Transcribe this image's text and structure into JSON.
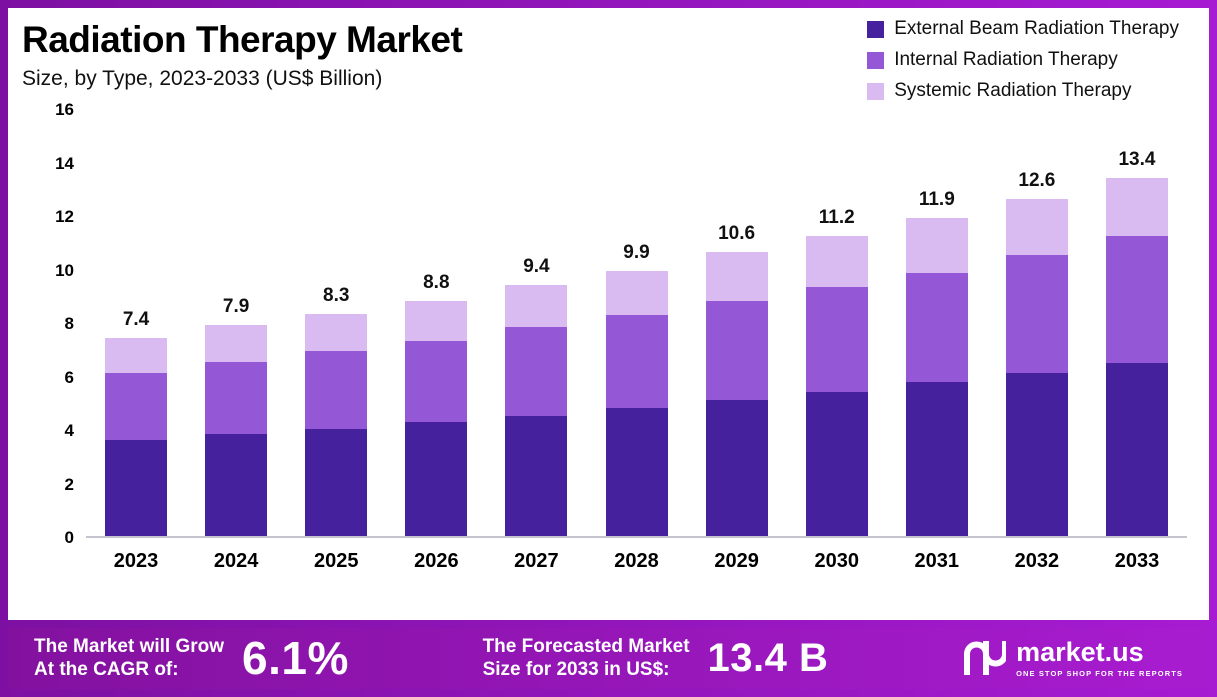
{
  "header": {
    "title": "Radiation Therapy Market",
    "subtitle": "Size, by Type, 2023-2033 (US$ Billion)"
  },
  "colors": {
    "external": "#45219E",
    "internal": "#9457D6",
    "systemic": "#D9BAF1",
    "banner_start": "#83119F",
    "banner_end": "#A81CD0"
  },
  "chart_data": {
    "type": "bar",
    "stacked": true,
    "title": "Radiation Therapy Market Size, by Type, 2023-2033 (US$ Billion)",
    "xlabel": "",
    "ylabel": "US$ Billion",
    "ylim": [
      0,
      16
    ],
    "yticks": [
      0,
      2,
      4,
      6,
      8,
      10,
      12,
      14,
      16
    ],
    "grid": false,
    "legend_position": "top-right",
    "categories": [
      "2023",
      "2024",
      "2025",
      "2026",
      "2027",
      "2028",
      "2029",
      "2030",
      "2031",
      "2032",
      "2033"
    ],
    "series": [
      {
        "name": "External Beam Radiation Therapy",
        "color": "#45219E",
        "values": [
          3.6,
          3.8,
          4.0,
          4.25,
          4.5,
          4.8,
          5.1,
          5.4,
          5.75,
          6.1,
          6.45
        ]
      },
      {
        "name": "Internal Radiation Therapy",
        "color": "#9457D6",
        "values": [
          2.5,
          2.7,
          2.9,
          3.05,
          3.3,
          3.45,
          3.7,
          3.9,
          4.1,
          4.4,
          4.75
        ]
      },
      {
        "name": "Systemic Radiation Therapy",
        "color": "#D9BAF1",
        "values": [
          1.3,
          1.4,
          1.4,
          1.5,
          1.6,
          1.65,
          1.8,
          1.9,
          2.05,
          2.1,
          2.2
        ]
      }
    ],
    "totals": [
      7.4,
      7.9,
      8.3,
      8.8,
      9.4,
      9.9,
      10.6,
      11.2,
      11.9,
      12.6,
      13.4
    ]
  },
  "banner": {
    "cagr_line1": "The Market will Grow",
    "cagr_line2": "At the CAGR of:",
    "cagr_value": "6.1%",
    "forecast_line1": "The Forecasted Market",
    "forecast_line2": "Size for 2033 in US$:",
    "forecast_value": "13.4 B",
    "brand": "market.us",
    "tagline": "ONE STOP SHOP FOR THE REPORTS"
  }
}
